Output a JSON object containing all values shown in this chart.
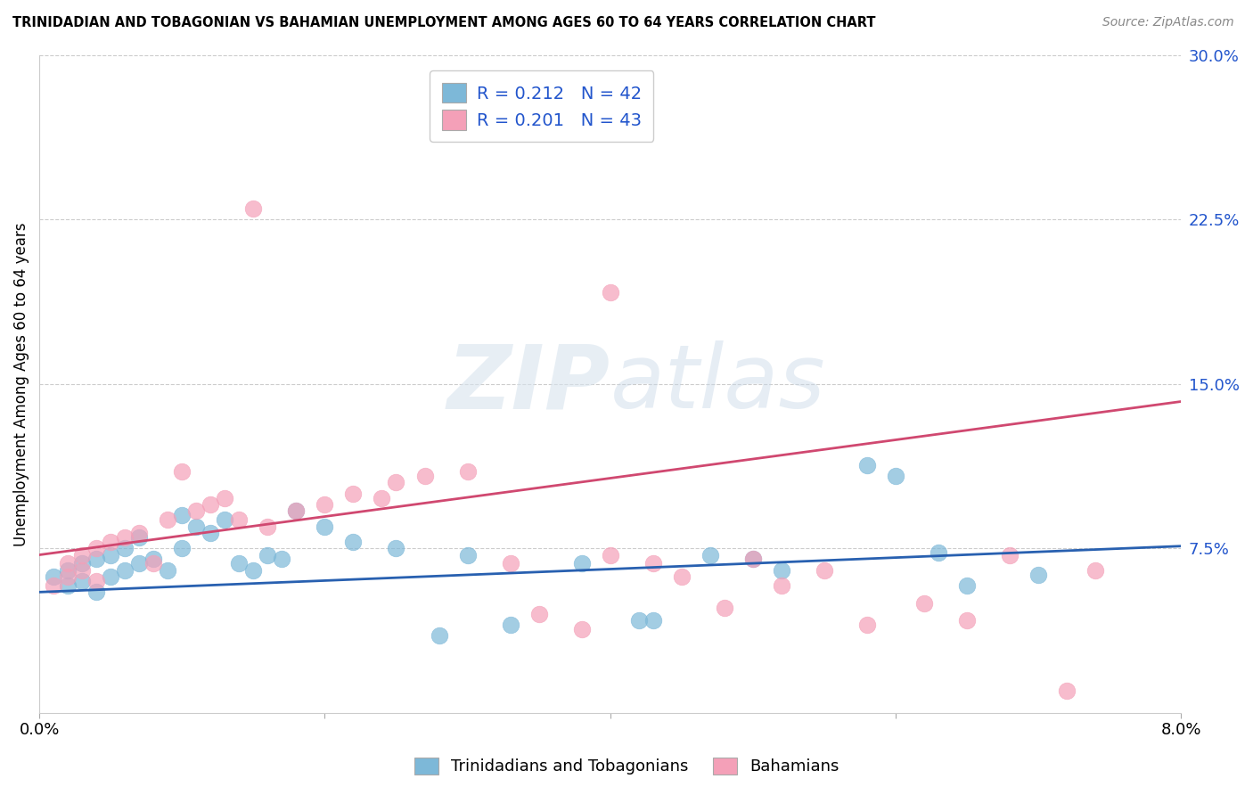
{
  "title": "TRINIDADIAN AND TOBAGONIAN VS BAHAMIAN UNEMPLOYMENT AMONG AGES 60 TO 64 YEARS CORRELATION CHART",
  "source": "Source: ZipAtlas.com",
  "ylabel": "Unemployment Among Ages 60 to 64 years",
  "xlim": [
    0.0,
    0.08
  ],
  "ylim": [
    0.0,
    0.3
  ],
  "yticks": [
    0.075,
    0.15,
    0.225,
    0.3
  ],
  "ytick_labels": [
    "7.5%",
    "15.0%",
    "22.5%",
    "30.0%"
  ],
  "r1": 0.212,
  "n1": 42,
  "r2": 0.201,
  "n2": 43,
  "color_blue": "#7db8d8",
  "color_pink": "#f4a0b8",
  "line_blue": "#2860b0",
  "line_pink": "#d04870",
  "legend_label1": "Trinidadians and Tobagonians",
  "legend_label2": "Bahamians",
  "watermark_text": "ZIPatlas",
  "blue_line_x0": 0.0,
  "blue_line_y0": 0.055,
  "blue_line_x1": 0.08,
  "blue_line_y1": 0.076,
  "pink_line_x0": 0.0,
  "pink_line_y0": 0.072,
  "pink_line_x1": 0.08,
  "pink_line_y1": 0.142,
  "blue_x": [
    0.001,
    0.002,
    0.002,
    0.003,
    0.003,
    0.004,
    0.004,
    0.005,
    0.005,
    0.006,
    0.006,
    0.007,
    0.007,
    0.008,
    0.009,
    0.01,
    0.01,
    0.011,
    0.012,
    0.013,
    0.014,
    0.015,
    0.016,
    0.017,
    0.018,
    0.02,
    0.022,
    0.025,
    0.028,
    0.03,
    0.033,
    0.038,
    0.042,
    0.043,
    0.047,
    0.05,
    0.052,
    0.058,
    0.06,
    0.063,
    0.065,
    0.07
  ],
  "blue_y": [
    0.062,
    0.058,
    0.065,
    0.06,
    0.068,
    0.055,
    0.07,
    0.062,
    0.072,
    0.065,
    0.075,
    0.068,
    0.08,
    0.07,
    0.065,
    0.075,
    0.09,
    0.085,
    0.082,
    0.088,
    0.068,
    0.065,
    0.072,
    0.07,
    0.092,
    0.085,
    0.078,
    0.075,
    0.035,
    0.072,
    0.04,
    0.068,
    0.042,
    0.042,
    0.072,
    0.07,
    0.065,
    0.113,
    0.108,
    0.073,
    0.058,
    0.063
  ],
  "pink_x": [
    0.001,
    0.002,
    0.002,
    0.003,
    0.003,
    0.004,
    0.004,
    0.005,
    0.006,
    0.007,
    0.008,
    0.009,
    0.01,
    0.011,
    0.012,
    0.013,
    0.014,
    0.015,
    0.016,
    0.018,
    0.02,
    0.022,
    0.024,
    0.025,
    0.027,
    0.03,
    0.033,
    0.035,
    0.038,
    0.04,
    0.04,
    0.043,
    0.045,
    0.048,
    0.05,
    0.052,
    0.055,
    0.058,
    0.062,
    0.065,
    0.068,
    0.072,
    0.074
  ],
  "pink_y": [
    0.058,
    0.062,
    0.068,
    0.065,
    0.072,
    0.06,
    0.075,
    0.078,
    0.08,
    0.082,
    0.068,
    0.088,
    0.11,
    0.092,
    0.095,
    0.098,
    0.088,
    0.23,
    0.085,
    0.092,
    0.095,
    0.1,
    0.098,
    0.105,
    0.108,
    0.11,
    0.068,
    0.045,
    0.038,
    0.192,
    0.072,
    0.068,
    0.062,
    0.048,
    0.07,
    0.058,
    0.065,
    0.04,
    0.05,
    0.042,
    0.072,
    0.01,
    0.065
  ]
}
